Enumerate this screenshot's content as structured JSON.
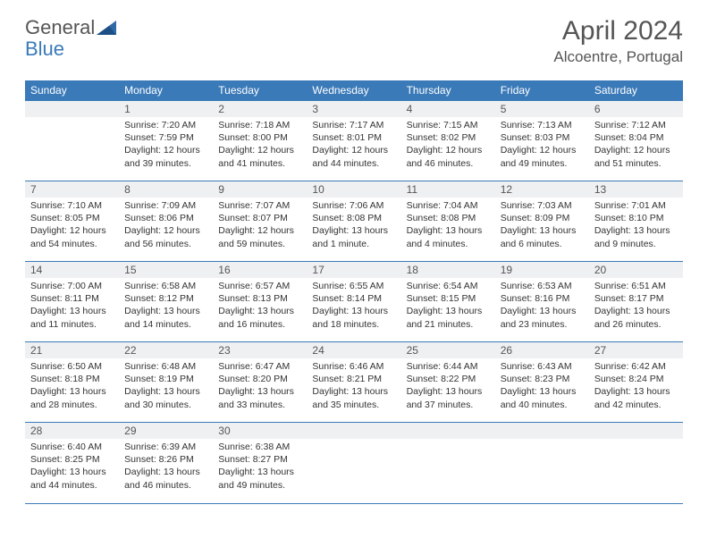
{
  "logo": {
    "word1": "General",
    "word2": "Blue"
  },
  "title": "April 2024",
  "location": "Alcoentre, Portugal",
  "colors": {
    "header_bg": "#3b7ab8",
    "header_text": "#ffffff",
    "daynum_bg": "#eef0f2",
    "border": "#3b7ab8",
    "body_bg": "#ffffff",
    "text": "#333333",
    "title_text": "#555555"
  },
  "typography": {
    "title_fontsize": 30,
    "location_fontsize": 17,
    "header_fontsize": 12,
    "cell_fontsize": 10.5
  },
  "weekdays": [
    "Sunday",
    "Monday",
    "Tuesday",
    "Wednesday",
    "Thursday",
    "Friday",
    "Saturday"
  ],
  "weeks": [
    [
      {
        "num": "",
        "sunrise": "",
        "sunset": "",
        "daylight": ""
      },
      {
        "num": "1",
        "sunrise": "Sunrise: 7:20 AM",
        "sunset": "Sunset: 7:59 PM",
        "daylight": "Daylight: 12 hours and 39 minutes."
      },
      {
        "num": "2",
        "sunrise": "Sunrise: 7:18 AM",
        "sunset": "Sunset: 8:00 PM",
        "daylight": "Daylight: 12 hours and 41 minutes."
      },
      {
        "num": "3",
        "sunrise": "Sunrise: 7:17 AM",
        "sunset": "Sunset: 8:01 PM",
        "daylight": "Daylight: 12 hours and 44 minutes."
      },
      {
        "num": "4",
        "sunrise": "Sunrise: 7:15 AM",
        "sunset": "Sunset: 8:02 PM",
        "daylight": "Daylight: 12 hours and 46 minutes."
      },
      {
        "num": "5",
        "sunrise": "Sunrise: 7:13 AM",
        "sunset": "Sunset: 8:03 PM",
        "daylight": "Daylight: 12 hours and 49 minutes."
      },
      {
        "num": "6",
        "sunrise": "Sunrise: 7:12 AM",
        "sunset": "Sunset: 8:04 PM",
        "daylight": "Daylight: 12 hours and 51 minutes."
      }
    ],
    [
      {
        "num": "7",
        "sunrise": "Sunrise: 7:10 AM",
        "sunset": "Sunset: 8:05 PM",
        "daylight": "Daylight: 12 hours and 54 minutes."
      },
      {
        "num": "8",
        "sunrise": "Sunrise: 7:09 AM",
        "sunset": "Sunset: 8:06 PM",
        "daylight": "Daylight: 12 hours and 56 minutes."
      },
      {
        "num": "9",
        "sunrise": "Sunrise: 7:07 AM",
        "sunset": "Sunset: 8:07 PM",
        "daylight": "Daylight: 12 hours and 59 minutes."
      },
      {
        "num": "10",
        "sunrise": "Sunrise: 7:06 AM",
        "sunset": "Sunset: 8:08 PM",
        "daylight": "Daylight: 13 hours and 1 minute."
      },
      {
        "num": "11",
        "sunrise": "Sunrise: 7:04 AM",
        "sunset": "Sunset: 8:08 PM",
        "daylight": "Daylight: 13 hours and 4 minutes."
      },
      {
        "num": "12",
        "sunrise": "Sunrise: 7:03 AM",
        "sunset": "Sunset: 8:09 PM",
        "daylight": "Daylight: 13 hours and 6 minutes."
      },
      {
        "num": "13",
        "sunrise": "Sunrise: 7:01 AM",
        "sunset": "Sunset: 8:10 PM",
        "daylight": "Daylight: 13 hours and 9 minutes."
      }
    ],
    [
      {
        "num": "14",
        "sunrise": "Sunrise: 7:00 AM",
        "sunset": "Sunset: 8:11 PM",
        "daylight": "Daylight: 13 hours and 11 minutes."
      },
      {
        "num": "15",
        "sunrise": "Sunrise: 6:58 AM",
        "sunset": "Sunset: 8:12 PM",
        "daylight": "Daylight: 13 hours and 14 minutes."
      },
      {
        "num": "16",
        "sunrise": "Sunrise: 6:57 AM",
        "sunset": "Sunset: 8:13 PM",
        "daylight": "Daylight: 13 hours and 16 minutes."
      },
      {
        "num": "17",
        "sunrise": "Sunrise: 6:55 AM",
        "sunset": "Sunset: 8:14 PM",
        "daylight": "Daylight: 13 hours and 18 minutes."
      },
      {
        "num": "18",
        "sunrise": "Sunrise: 6:54 AM",
        "sunset": "Sunset: 8:15 PM",
        "daylight": "Daylight: 13 hours and 21 minutes."
      },
      {
        "num": "19",
        "sunrise": "Sunrise: 6:53 AM",
        "sunset": "Sunset: 8:16 PM",
        "daylight": "Daylight: 13 hours and 23 minutes."
      },
      {
        "num": "20",
        "sunrise": "Sunrise: 6:51 AM",
        "sunset": "Sunset: 8:17 PM",
        "daylight": "Daylight: 13 hours and 26 minutes."
      }
    ],
    [
      {
        "num": "21",
        "sunrise": "Sunrise: 6:50 AM",
        "sunset": "Sunset: 8:18 PM",
        "daylight": "Daylight: 13 hours and 28 minutes."
      },
      {
        "num": "22",
        "sunrise": "Sunrise: 6:48 AM",
        "sunset": "Sunset: 8:19 PM",
        "daylight": "Daylight: 13 hours and 30 minutes."
      },
      {
        "num": "23",
        "sunrise": "Sunrise: 6:47 AM",
        "sunset": "Sunset: 8:20 PM",
        "daylight": "Daylight: 13 hours and 33 minutes."
      },
      {
        "num": "24",
        "sunrise": "Sunrise: 6:46 AM",
        "sunset": "Sunset: 8:21 PM",
        "daylight": "Daylight: 13 hours and 35 minutes."
      },
      {
        "num": "25",
        "sunrise": "Sunrise: 6:44 AM",
        "sunset": "Sunset: 8:22 PM",
        "daylight": "Daylight: 13 hours and 37 minutes."
      },
      {
        "num": "26",
        "sunrise": "Sunrise: 6:43 AM",
        "sunset": "Sunset: 8:23 PM",
        "daylight": "Daylight: 13 hours and 40 minutes."
      },
      {
        "num": "27",
        "sunrise": "Sunrise: 6:42 AM",
        "sunset": "Sunset: 8:24 PM",
        "daylight": "Daylight: 13 hours and 42 minutes."
      }
    ],
    [
      {
        "num": "28",
        "sunrise": "Sunrise: 6:40 AM",
        "sunset": "Sunset: 8:25 PM",
        "daylight": "Daylight: 13 hours and 44 minutes."
      },
      {
        "num": "29",
        "sunrise": "Sunrise: 6:39 AM",
        "sunset": "Sunset: 8:26 PM",
        "daylight": "Daylight: 13 hours and 46 minutes."
      },
      {
        "num": "30",
        "sunrise": "Sunrise: 6:38 AM",
        "sunset": "Sunset: 8:27 PM",
        "daylight": "Daylight: 13 hours and 49 minutes."
      },
      {
        "num": "",
        "sunrise": "",
        "sunset": "",
        "daylight": ""
      },
      {
        "num": "",
        "sunrise": "",
        "sunset": "",
        "daylight": ""
      },
      {
        "num": "",
        "sunrise": "",
        "sunset": "",
        "daylight": ""
      },
      {
        "num": "",
        "sunrise": "",
        "sunset": "",
        "daylight": ""
      }
    ]
  ]
}
